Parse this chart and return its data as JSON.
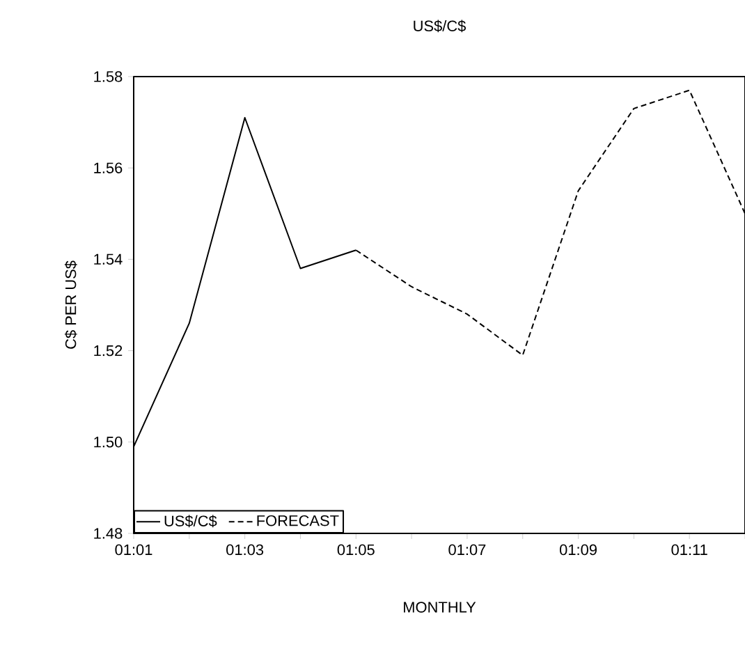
{
  "chart_data": {
    "type": "line",
    "title": "US$/C$",
    "xlabel": "MONTHLY",
    "ylabel": "C$ PER US$",
    "categories": [
      "01:01",
      null,
      "01:03",
      null,
      "01:05",
      null,
      "01:07",
      null,
      "01:09",
      null,
      "01:11",
      null
    ],
    "series": [
      {
        "name": "US$/C$",
        "color": "#000000",
        "line_style": "solid",
        "values": [
          1.499,
          1.526,
          1.571,
          1.538,
          1.542,
          null,
          null,
          null,
          null,
          null,
          null,
          null
        ]
      },
      {
        "name": "FORECAST",
        "color": "#000000",
        "line_style": "dashed",
        "values": [
          null,
          null,
          null,
          null,
          1.542,
          1.534,
          1.528,
          1.519,
          1.555,
          1.573,
          1.577,
          1.55
        ]
      }
    ],
    "ylim": [
      1.48,
      1.58
    ],
    "yticks": [
      1.48,
      {
        "value": 1.5,
        "label": "1.50"
      },
      1.52,
      1.54,
      1.56,
      1.58
    ],
    "grid": false,
    "legend": "bottom left",
    "marker": "none"
  }
}
